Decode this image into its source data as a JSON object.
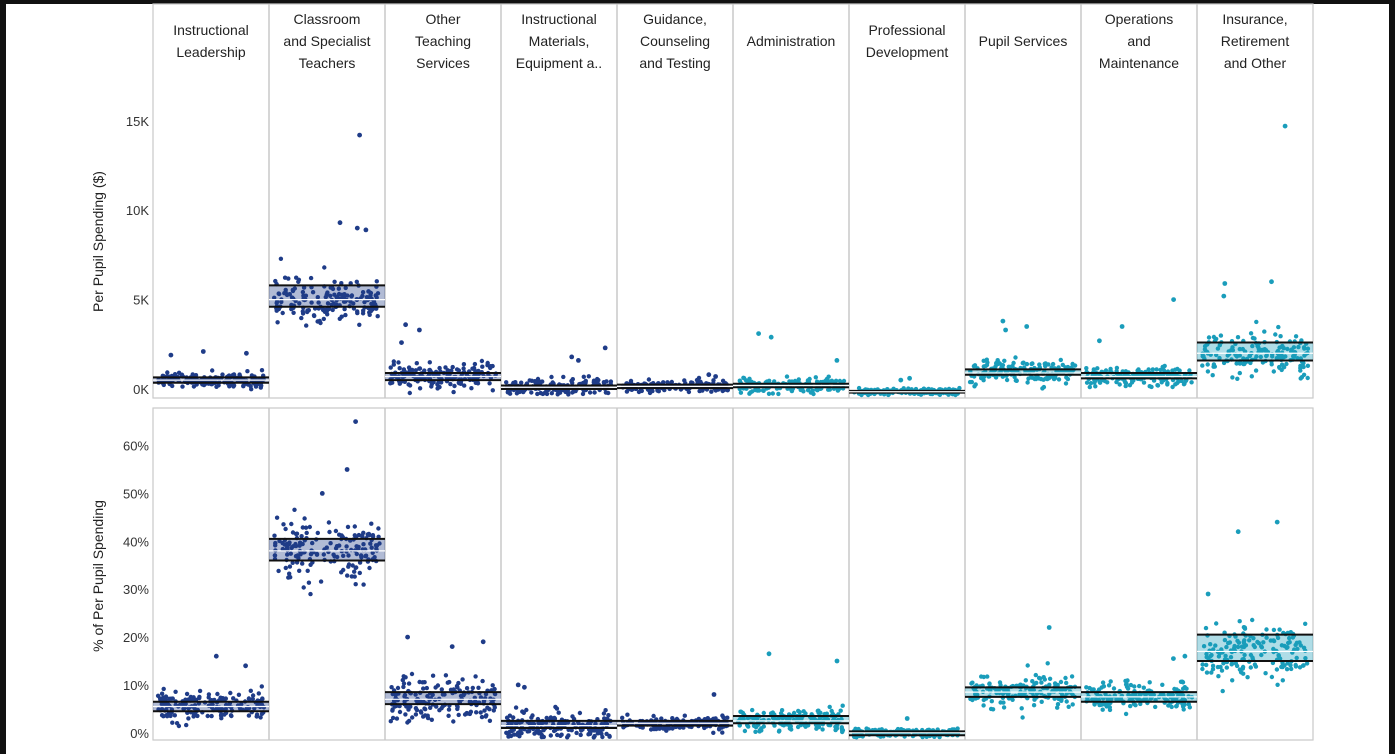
{
  "chart_data": {
    "type": "scatter",
    "layout": "small-multiples strip plot with reference bands",
    "columns": [
      "Instructional Leadership",
      "Classroom and Specialist Teachers",
      "Other Teaching Services",
      "Instructional Materials, Equipment a..",
      "Guidance, Counseling and Testing",
      "Administration",
      "Professional Development",
      "Pupil Services",
      "Operations and Maintenance",
      "Insurance, Retirement and Other"
    ],
    "column_lines": [
      [
        "Instructional",
        "Leadership"
      ],
      [
        "Classroom",
        "and Specialist",
        "Teachers"
      ],
      [
        "Other",
        "Teaching",
        "Services"
      ],
      [
        "Instructional",
        "Materials,",
        "Equipment a.."
      ],
      [
        "Guidance,",
        "Counseling",
        "and Testing"
      ],
      [
        "Administration"
      ],
      [
        "Professional",
        "Development"
      ],
      [
        "Pupil Services"
      ],
      [
        "Operations",
        "and",
        "Maintenance"
      ],
      [
        "Insurance,",
        "Retirement",
        "and Other"
      ]
    ],
    "column_colors": [
      "#1f3c88",
      "#1f3c88",
      "#1f3c88",
      "#1f3c88",
      "#1f3c88",
      "#1a9dbb",
      "#1a9dbb",
      "#1a9dbb",
      "#1a9dbb",
      "#1a9dbb"
    ],
    "panels": [
      {
        "name": "spending",
        "ylabel": "Per Pupil Spending ($)",
        "ylim": [
          -500,
          17000
        ],
        "ticks": [
          0,
          5000,
          10000,
          15000
        ],
        "tick_labels": [
          "0K",
          "5K",
          "10K",
          "15K"
        ],
        "series": [
          {
            "column": "Instructional Leadership",
            "center": 500,
            "spread": 350,
            "min": -300,
            "max": 2200,
            "band": [
              350,
              650
            ],
            "outliers": [
              2100,
              2000,
              1900
            ]
          },
          {
            "column": "Classroom and Specialist Teachers",
            "center": 5000,
            "spread": 1000,
            "min": 3400,
            "max": 9500,
            "band": [
              4600,
              5800
            ],
            "outliers": [
              14200,
              9300,
              9000,
              8900
            ]
          },
          {
            "column": "Other Teaching Services",
            "center": 700,
            "spread": 600,
            "min": -300,
            "max": 3700,
            "band": [
              500,
              900
            ],
            "outliers": [
              3600,
              3300,
              2600
            ]
          },
          {
            "column": "Instructional Materials, Equipment a..",
            "center": 100,
            "spread": 400,
            "min": -300,
            "max": 2300,
            "band": [
              0,
              200
            ],
            "outliers": [
              2300,
              1800,
              1600
            ]
          },
          {
            "column": "Guidance, Counseling and Testing",
            "center": 150,
            "spread": 250,
            "min": -300,
            "max": 900,
            "band": [
              50,
              250
            ],
            "outliers": [
              800,
              700
            ]
          },
          {
            "column": "Administration",
            "center": 200,
            "spread": 350,
            "min": -300,
            "max": 3100,
            "band": [
              100,
              300
            ],
            "outliers": [
              3100,
              2900,
              1600
            ]
          },
          {
            "column": "Professional Development",
            "center": -150,
            "spread": 150,
            "min": -350,
            "max": 600,
            "band": [
              -200,
              -100
            ],
            "outliers": [
              600,
              500
            ]
          },
          {
            "column": "Pupil Services",
            "center": 900,
            "spread": 550,
            "min": 0,
            "max": 3800,
            "band": [
              800,
              1100
            ],
            "outliers": [
              3800,
              3500,
              3300
            ]
          },
          {
            "column": "Operations and Maintenance",
            "center": 700,
            "spread": 450,
            "min": 100,
            "max": 5000,
            "band": [
              600,
              900
            ],
            "outliers": [
              5000,
              3500,
              2700
            ]
          },
          {
            "column": "Insurance, Retirement and Other",
            "center": 2000,
            "spread": 900,
            "min": 0,
            "max": 6000,
            "band": [
              1600,
              2600
            ],
            "outliers": [
              14700,
              6000,
              5900,
              5200
            ]
          }
        ]
      },
      {
        "name": "percent",
        "ylabel": "% of Per Pupil Spending",
        "ylim": [
          -1.5,
          67
        ],
        "ticks": [
          0,
          10,
          20,
          30,
          40,
          50,
          60
        ],
        "tick_labels": [
          "0%",
          "10%",
          "20%",
          "30%",
          "40%",
          "50%",
          "60%"
        ],
        "series": [
          {
            "column": "Instructional Leadership",
            "center": 5.5,
            "spread": 2.8,
            "min": -1,
            "max": 16,
            "band": [
              4.5,
              6.5
            ],
            "outliers": [
              16,
              14
            ]
          },
          {
            "column": "Classroom and Specialist Teachers",
            "center": 38,
            "spread": 5,
            "min": 24,
            "max": 50,
            "band": [
              36,
              40.5
            ],
            "outliers": [
              65,
              55,
              50
            ]
          },
          {
            "column": "Other Teaching Services",
            "center": 7,
            "spread": 4,
            "min": 1,
            "max": 20,
            "band": [
              6,
              8.5
            ],
            "outliers": [
              20,
              19,
              18
            ]
          },
          {
            "column": "Instructional Materials, Equipment a..",
            "center": 1.5,
            "spread": 2.5,
            "min": -1,
            "max": 10,
            "band": [
              1,
              2.5
            ],
            "outliers": [
              10,
              9.5
            ]
          },
          {
            "column": "Guidance, Counseling and Testing",
            "center": 2,
            "spread": 1.2,
            "min": 0,
            "max": 8,
            "band": [
              1.5,
              2.5
            ],
            "outliers": [
              8
            ]
          },
          {
            "column": "Administration",
            "center": 2.5,
            "spread": 2,
            "min": 0,
            "max": 17,
            "band": [
              2,
              3.5
            ],
            "outliers": [
              16.5,
              15
            ]
          },
          {
            "column": "Professional Development",
            "center": 0,
            "spread": 0.7,
            "min": -1,
            "max": 3,
            "band": [
              -0.5,
              0.3
            ],
            "outliers": [
              3
            ]
          },
          {
            "column": "Pupil Services",
            "center": 8.5,
            "spread": 2.8,
            "min": 3,
            "max": 22,
            "band": [
              7.5,
              9.5
            ],
            "outliers": [
              22
            ]
          },
          {
            "column": "Operations and Maintenance",
            "center": 7.5,
            "spread": 2.4,
            "min": 3,
            "max": 16,
            "band": [
              6.5,
              8.5
            ],
            "outliers": [
              16,
              15.5
            ]
          },
          {
            "column": "Insurance, Retirement and Other",
            "center": 17,
            "spread": 4.5,
            "min": 3,
            "max": 29,
            "band": [
              15,
              20.5
            ],
            "outliers": [
              44,
              42,
              29
            ]
          }
        ]
      }
    ],
    "grid": true,
    "legend": "none"
  }
}
